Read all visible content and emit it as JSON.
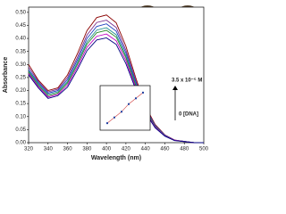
{
  "chart_data": [
    {
      "type": "line",
      "xlabel": "Wavelength (nm)",
      "ylabel": "Absorbance",
      "x": [
        320,
        330,
        340,
        350,
        360,
        370,
        380,
        390,
        400,
        410,
        420,
        430,
        440,
        450,
        460,
        470,
        480,
        490,
        500
      ],
      "series": [
        {
          "color": "#8b0000",
          "values": [
            0.3,
            0.24,
            0.2,
            0.21,
            0.26,
            0.34,
            0.43,
            0.48,
            0.49,
            0.46,
            0.37,
            0.25,
            0.14,
            0.07,
            0.03,
            0.01,
            0.005,
            0,
            0
          ]
        },
        {
          "color": "#7b2d8e",
          "values": [
            0.29,
            0.235,
            0.195,
            0.205,
            0.25,
            0.326,
            0.413,
            0.461,
            0.47,
            0.442,
            0.355,
            0.24,
            0.134,
            0.067,
            0.029,
            0.01,
            0.005,
            0,
            0
          ]
        },
        {
          "color": "#1f3fbf",
          "values": [
            0.28,
            0.23,
            0.19,
            0.2,
            0.242,
            0.316,
            0.4,
            0.446,
            0.456,
            0.428,
            0.344,
            0.233,
            0.13,
            0.065,
            0.028,
            0.009,
            0.005,
            0,
            0
          ]
        },
        {
          "color": "#1f8f8f",
          "values": [
            0.275,
            0.225,
            0.185,
            0.195,
            0.234,
            0.306,
            0.387,
            0.432,
            0.441,
            0.414,
            0.333,
            0.225,
            0.126,
            0.063,
            0.027,
            0.009,
            0.004,
            0,
            0
          ]
        },
        {
          "color": "#2e8b2e",
          "values": [
            0.27,
            0.22,
            0.18,
            0.19,
            0.229,
            0.299,
            0.378,
            0.422,
            0.431,
            0.405,
            0.326,
            0.22,
            0.123,
            0.062,
            0.026,
            0.009,
            0.004,
            0,
            0
          ]
        },
        {
          "color": "#c000c0",
          "values": [
            0.265,
            0.215,
            0.175,
            0.185,
            0.221,
            0.289,
            0.366,
            0.408,
            0.417,
            0.391,
            0.315,
            0.213,
            0.119,
            0.06,
            0.026,
            0.009,
            0.004,
            0,
            0
          ]
        },
        {
          "color": "#000080",
          "values": [
            0.26,
            0.21,
            0.17,
            0.18,
            0.213,
            0.279,
            0.353,
            0.394,
            0.402,
            0.377,
            0.303,
            0.205,
            0.115,
            0.057,
            0.025,
            0.008,
            0.004,
            0,
            0
          ]
        }
      ],
      "xlim": [
        320,
        500
      ],
      "xticks": [
        320,
        340,
        360,
        380,
        400,
        420,
        440,
        460,
        480,
        500
      ],
      "ylim": [
        0,
        0.52
      ],
      "yticks": [
        {
          "value": 0,
          "label": "0.00"
        },
        {
          "value": 0.05,
          "label": "0.05"
        },
        {
          "value": 0.1,
          "label": "0.10"
        },
        {
          "value": 0.15,
          "label": "0.15"
        },
        {
          "value": 0.2,
          "label": "0.20"
        },
        {
          "value": 0.25,
          "label": "0.25"
        },
        {
          "value": 0.3,
          "label": "0.30"
        },
        {
          "value": 0.35,
          "label": "0.35"
        },
        {
          "value": 0.4,
          "label": "0.40"
        },
        {
          "value": 0.45,
          "label": "0.45"
        },
        {
          "value": 0.5,
          "label": "0.50"
        }
      ],
      "annotations": [
        "3.5 x 10⁻⁵ M",
        "0 [DNA]"
      ]
    },
    {
      "type": "scatter",
      "x": [
        1,
        2,
        3,
        4,
        5,
        6
      ],
      "series": [
        {
          "color": "#d04040",
          "values": [
            1.1,
            2.0,
            2.9,
            4.1,
            5.0,
            5.9
          ]
        }
      ],
      "xlim": [
        0,
        7
      ],
      "ylim": [
        0,
        7
      ]
    }
  ]
}
